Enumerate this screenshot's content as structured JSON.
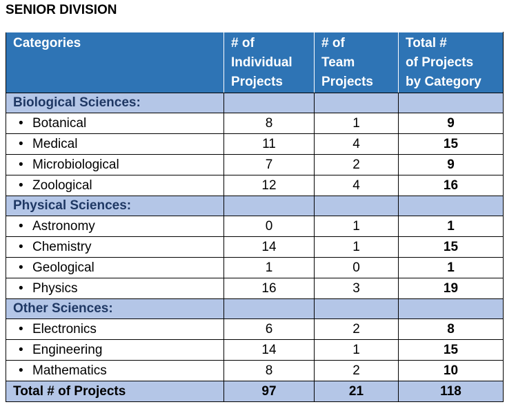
{
  "title": "SENIOR DIVISION",
  "headers": {
    "categories": "Categories",
    "individual": [
      "# of",
      "Individual",
      "Projects"
    ],
    "team": [
      "# of",
      "Team",
      "Projects"
    ],
    "total": [
      "Total #",
      "of Projects",
      "by Category"
    ]
  },
  "sections": [
    {
      "label": "Biological Sciences:",
      "rows": [
        {
          "name": "Botanical",
          "individual": "8",
          "team": "1",
          "total": "9"
        },
        {
          "name": "Medical",
          "individual": "11",
          "team": "4",
          "total": "15"
        },
        {
          "name": "Microbiological",
          "individual": "7",
          "team": "2",
          "total": "9"
        },
        {
          "name": "Zoological",
          "individual": "12",
          "team": "4",
          "total": "16"
        }
      ]
    },
    {
      "label": "Physical Sciences:",
      "rows": [
        {
          "name": "Astronomy",
          "individual": "0",
          "team": "1",
          "total": "1"
        },
        {
          "name": "Chemistry",
          "individual": "14",
          "team": "1",
          "total": "15"
        },
        {
          "name": "Geological",
          "individual": "1",
          "team": "0",
          "total": "1"
        },
        {
          "name": "Physics",
          "individual": "16",
          "team": "3",
          "total": "19"
        }
      ]
    },
    {
      "label": "Other Sciences:",
      "rows": [
        {
          "name": "Electronics",
          "individual": "6",
          "team": "2",
          "total": "8"
        },
        {
          "name": "Engineering",
          "individual": "14",
          "team": "1",
          "total": "15"
        },
        {
          "name": "Mathematics",
          "individual": "8",
          "team": "2",
          "total": "10"
        }
      ]
    }
  ],
  "totals": {
    "label": "Total # of Projects",
    "individual": "97",
    "team": "21",
    "total": "118"
  },
  "colors": {
    "header_bg": "#2e74b5",
    "section_bg": "#b4c6e7",
    "section_text": "#1f3864"
  }
}
